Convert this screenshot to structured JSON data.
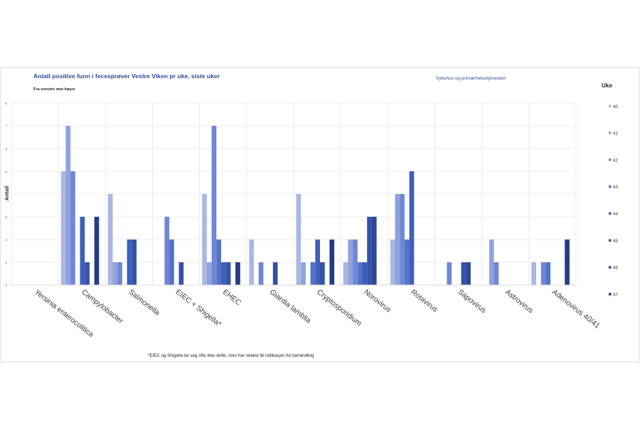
{
  "chart_data": {
    "type": "bar",
    "title": "Antall positive funn i fecesprøver Vestre Viken pr uke, siste uker",
    "subtitle": "Fra venstre mot høyre",
    "right_title": "Sykehus og primærhelsetjenesten",
    "footnote": "*EIEC og Shigella lar seg ofte ikke skille, men har relativt lik indikasjon for behandling",
    "xlabel": "",
    "ylabel": "Antall",
    "legend_title": "Uke",
    "legend_position": "right",
    "ylim": [
      0,
      8
    ],
    "yticks": [
      0,
      1,
      2,
      3,
      4,
      5,
      6,
      7,
      8
    ],
    "grid": true,
    "categories": [
      "Yersinia enterocolitica",
      "Campylobacter",
      "Salmonella",
      "EIEC + Shigella*",
      "EHEC",
      "Giardia lamblia",
      "Cryptosporidium",
      "Norovirus",
      "Rotavirus",
      "Sapovirus",
      "Astrovirus",
      "Adenovirus 40/41"
    ],
    "series": [
      {
        "name": "40",
        "color": "#a9b8e2",
        "values": [
          0,
          5,
          4,
          0,
          4,
          2,
          4,
          1,
          2,
          0,
          0,
          1
        ]
      },
      {
        "name": "41",
        "color": "#8fa3dc",
        "values": [
          0,
          7,
          1,
          0,
          1,
          0,
          1,
          2,
          4,
          0,
          2,
          0
        ]
      },
      {
        "name": "42",
        "color": "#6f87d4",
        "values": [
          0,
          5,
          1,
          3,
          7,
          1,
          0,
          2,
          4,
          1,
          1,
          1
        ]
      },
      {
        "name": "43",
        "color": "#5373c9",
        "values": [
          0,
          0,
          0,
          2,
          2,
          0,
          1,
          1,
          2,
          0,
          0,
          1
        ]
      },
      {
        "name": "44",
        "color": "#3f5fba",
        "values": [
          0,
          3,
          2,
          0,
          1,
          0,
          2,
          1,
          5,
          0,
          0,
          0
        ]
      },
      {
        "name": "45",
        "color": "#3552a8",
        "values": [
          0,
          1,
          2,
          1,
          1,
          1,
          1,
          3,
          0,
          1,
          0,
          0
        ]
      },
      {
        "name": "46",
        "color": "#2d4796",
        "values": [
          0,
          0,
          0,
          0,
          0,
          0,
          0,
          3,
          0,
          1,
          0,
          0
        ]
      },
      {
        "name": "47",
        "color": "#243c84",
        "values": [
          0,
          3,
          0,
          0,
          1,
          0,
          2,
          0,
          0,
          0,
          0,
          2
        ]
      }
    ]
  },
  "colors": {
    "title": "#2f4d8f",
    "text": "#333333",
    "axis": "#d9d9d9",
    "grid": "#e6e6e6",
    "frame": "#d9d9d9"
  }
}
